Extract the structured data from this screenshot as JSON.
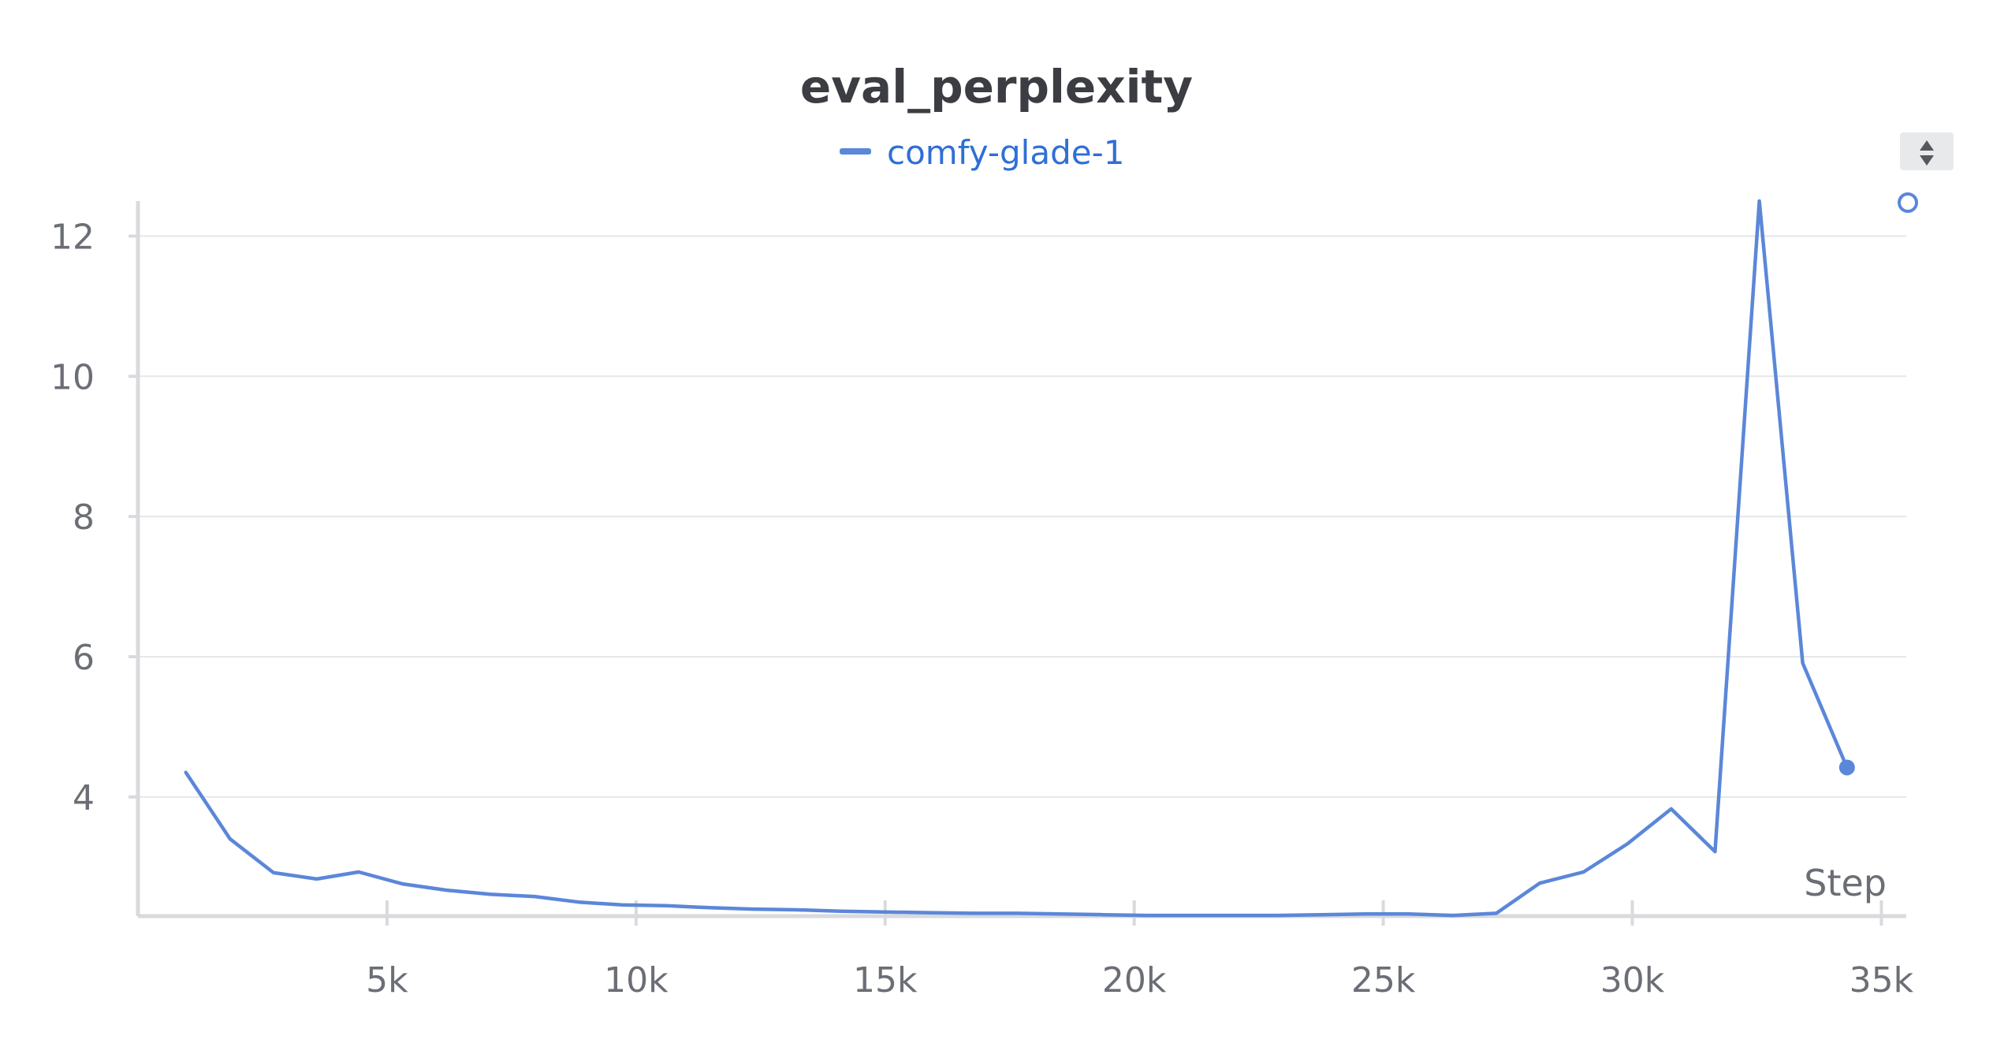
{
  "chart_data": {
    "type": "line",
    "title": "eval_perplexity",
    "xlabel": "Step",
    "ylabel": "",
    "xlim": [
      0,
      35500
    ],
    "ylim": [
      2.3,
      12.5
    ],
    "x_ticks": [
      5000,
      10000,
      15000,
      20000,
      25000,
      30000,
      35000
    ],
    "x_tick_labels": [
      "5k",
      "10k",
      "15k",
      "20k",
      "25k",
      "30k",
      "35k"
    ],
    "y_ticks": [
      4,
      6,
      8,
      10,
      12
    ],
    "y_tick_labels": [
      "4",
      "6",
      "8",
      "10",
      "12"
    ],
    "grid": true,
    "legend_position": "top-center",
    "series": [
      {
        "name": "comfy-glade-1",
        "color": "#5b87d9",
        "x": [
          960,
          1850,
          2720,
          3590,
          4430,
          5310,
          6200,
          7090,
          7960,
          8850,
          9720,
          10600,
          11470,
          12350,
          13230,
          14100,
          14970,
          15860,
          16740,
          17620,
          18500,
          19370,
          20250,
          21130,
          22000,
          22880,
          23760,
          24640,
          25510,
          26400,
          27270,
          28140,
          29020,
          29900,
          30780,
          31660,
          32550,
          33420,
          34310
        ],
        "y": [
          4.35,
          3.4,
          2.92,
          2.83,
          2.93,
          2.76,
          2.67,
          2.61,
          2.58,
          2.5,
          2.46,
          2.45,
          2.42,
          2.4,
          2.39,
          2.37,
          2.36,
          2.35,
          2.34,
          2.34,
          2.33,
          2.32,
          2.31,
          2.31,
          2.31,
          2.31,
          2.32,
          2.33,
          2.33,
          2.31,
          2.34,
          2.77,
          2.93,
          3.33,
          3.83,
          3.22,
          12.5,
          5.91,
          4.42
        ]
      }
    ]
  },
  "controls": {
    "sort_icon": "sort-arrows-icon",
    "marker_icon": "circle-outline-icon"
  }
}
